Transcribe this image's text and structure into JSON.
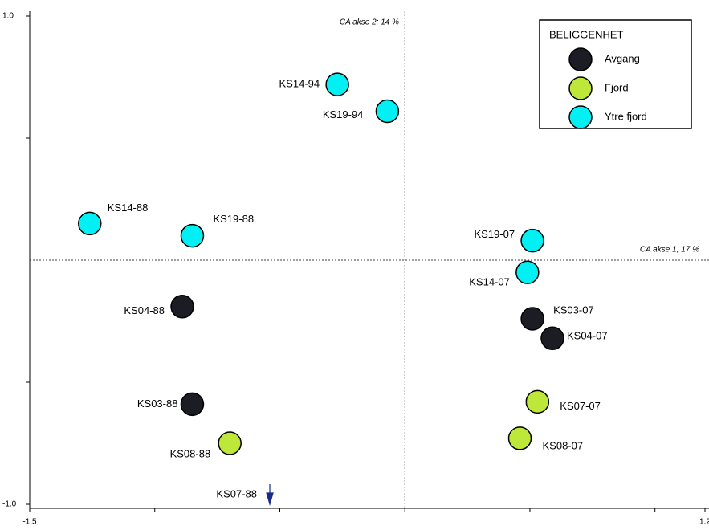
{
  "chart_data": {
    "type": "scatter",
    "xlim": [
      -1.5,
      1.2
    ],
    "ylim": [
      -1.0,
      1.0
    ],
    "xticks": [
      -1.5,
      1.2
    ],
    "yticks": [
      {
        "value": 1.0,
        "label": "1.0"
      },
      {
        "value": -1.0,
        "label": "-1.0"
      }
    ],
    "xminorticks": [
      -1.0,
      -0.5,
      0,
      0.5,
      1.0
    ],
    "yminorticks": [
      -0.5,
      0.5
    ],
    "xaxis_label": "CA akse 1; 17 %",
    "yaxis_label": "CA akse 2; 14 %",
    "legend_title": "BELIGGENHET",
    "legend_position": "upper right",
    "series": [
      {
        "name": "Avgang",
        "color": "#1b1c24",
        "labels": [
          "KS04-88",
          "KS03-88",
          "KS03-07",
          "KS04-07"
        ],
        "x": [
          -0.89,
          -0.85,
          0.51,
          0.59
        ],
        "y": [
          -0.19,
          -0.59,
          -0.24,
          -0.32
        ]
      },
      {
        "name": "Fjord",
        "color": "#bde83a",
        "labels": [
          "KS08-88",
          "KS07-07",
          "KS08-07"
        ],
        "x": [
          -0.7,
          0.53,
          0.46
        ],
        "y": [
          -0.75,
          -0.58,
          -0.73
        ]
      },
      {
        "name": "Ytre fjord",
        "color": "#00f0f4",
        "labels": [
          "KS14-94",
          "KS19-94",
          "KS14-88",
          "KS19-88",
          "KS19-07",
          "KS14-07"
        ],
        "x": [
          -0.27,
          -0.07,
          -1.26,
          -0.85,
          0.51,
          0.49
        ],
        "y": [
          0.72,
          0.61,
          0.15,
          0.1,
          0.08,
          -0.05
        ]
      }
    ],
    "offscale": {
      "label": "KS07-88",
      "x": -0.54,
      "color": "#1a2a8a"
    }
  }
}
